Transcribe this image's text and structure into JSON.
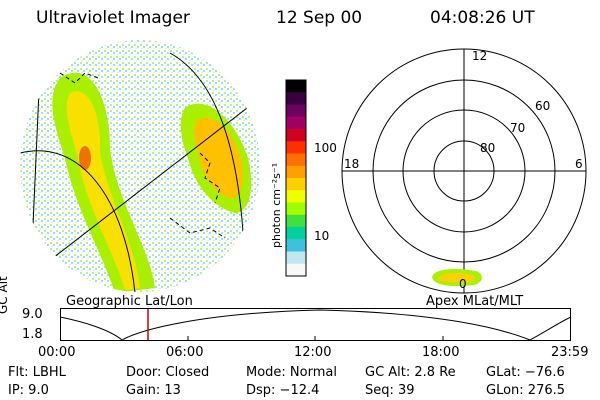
{
  "header": {
    "instrument": "Ultraviolet Imager",
    "date": "12 Sep 00",
    "time": "04:08:26 UT"
  },
  "left_panel": {
    "caption": "Geographic Lat/Lon"
  },
  "color_bar": {
    "unit_label": "photon cm⁻²s⁻¹",
    "tick_labels": [
      "100",
      "10"
    ],
    "colors": [
      "#000000",
      "#3b0040",
      "#6d0060",
      "#a00060",
      "#d00020",
      "#ff3000",
      "#ff7000",
      "#ffa000",
      "#ffd000",
      "#f0ff00",
      "#a0ff00",
      "#40e040",
      "#00d0a0",
      "#40c0e0",
      "#c0e8f0",
      "#f8f8f8"
    ]
  },
  "polar_panel": {
    "caption": "Apex MLat/MLT",
    "mlt_labels": {
      "top": "12",
      "left": "18",
      "right": "6",
      "bottom": "0"
    },
    "lat_labels": [
      "60",
      "70",
      "80"
    ]
  },
  "timeline": {
    "y_axis_label": "GC Alt",
    "y_ticks": [
      "9.0",
      "1.8"
    ],
    "x_ticks": [
      "00:00",
      "06:00",
      "12:00",
      "18:00",
      "23:59"
    ],
    "current_time_fraction": 0.171,
    "marker_color": "#cc0000"
  },
  "footer": {
    "col1": [
      "Flt: LBHL",
      "IP:  9.0"
    ],
    "col2": [
      "Door: Closed",
      "Gain: 13"
    ],
    "col3": [
      "Mode: Normal",
      "Dsp:  −12.4"
    ],
    "col4": [
      "GC Alt: 2.8 Re",
      "Seq: 39"
    ],
    "col5": [
      "GLat: −76.6",
      "GLon: 276.5"
    ]
  }
}
